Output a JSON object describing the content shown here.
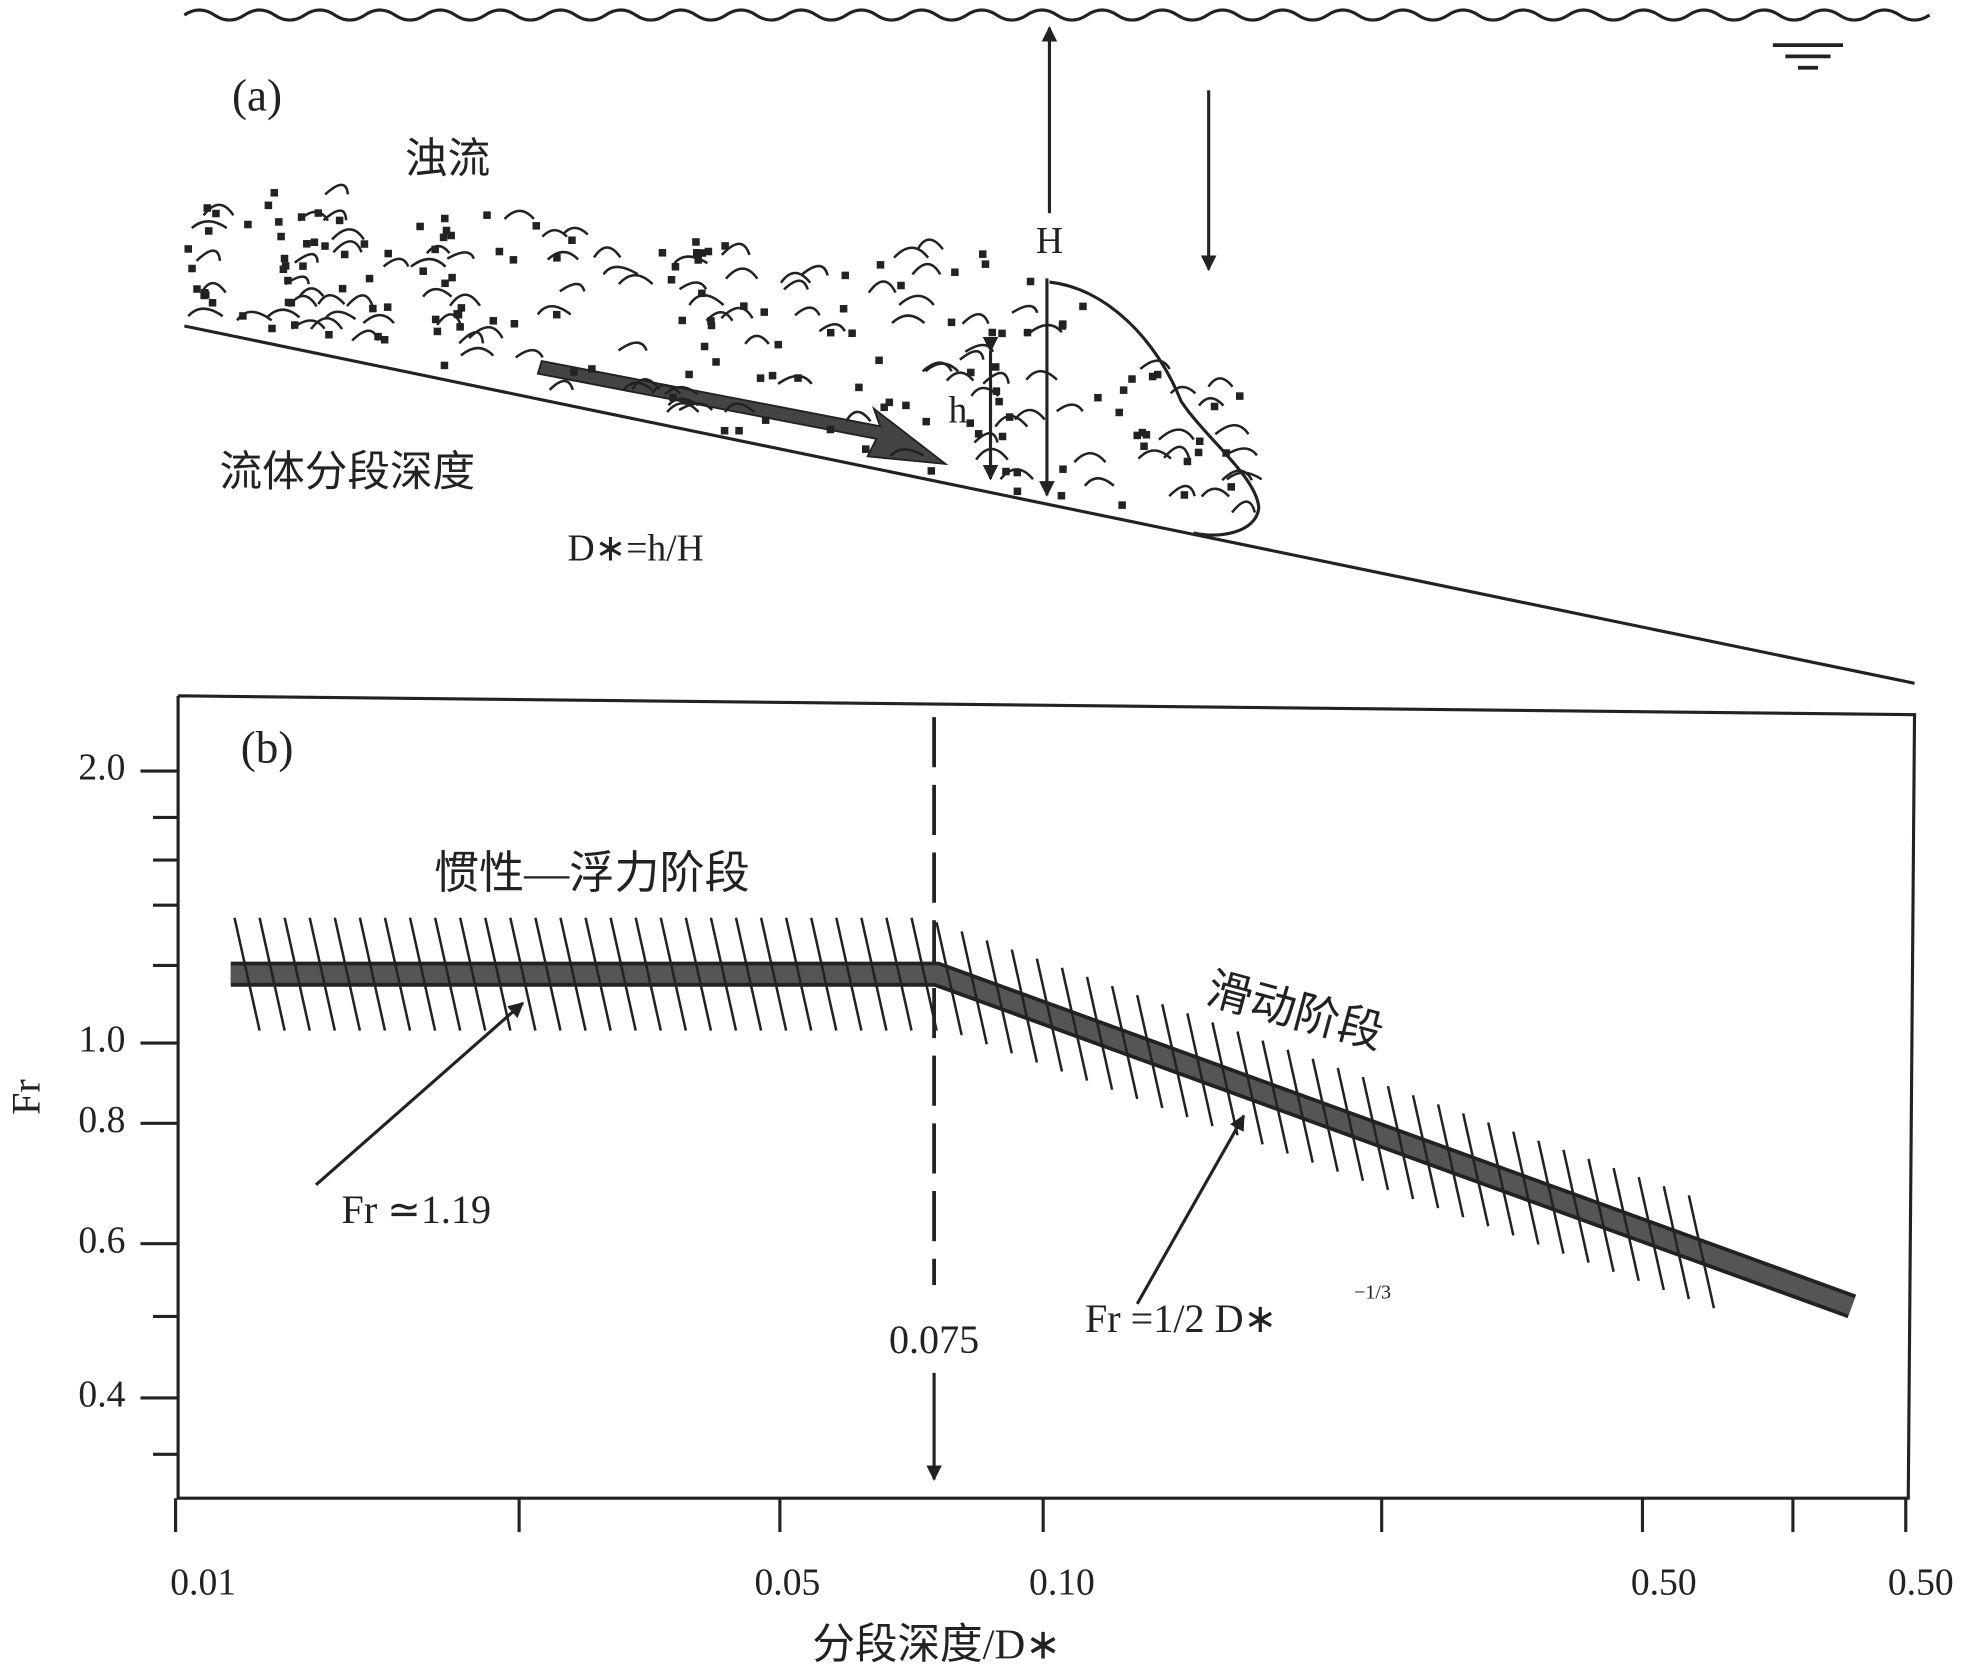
{
  "panel_a": {
    "label": "(a)",
    "current": "浊流",
    "big_h": "H",
    "small_h": "h",
    "depth_label": "流体分段深度",
    "formula": "D∗=h/H"
  },
  "panel_b": {
    "label": "(b)",
    "y_axis_label": "Fr",
    "yticks": [
      "2.0",
      "1.0",
      "0.8",
      "0.6",
      "0.4"
    ],
    "xticks": [
      "0.01",
      "0.05",
      "0.10",
      "0.50",
      "0.50"
    ],
    "x_axis_label": "分段深度/D∗",
    "stage_1": "惯性—浮力阶段",
    "stage_2": "滑动阶段",
    "threshold": "0.075",
    "annotation_1": "Fr ≃1.19",
    "annotation_2": "Fr =1/2  D∗",
    "annotation_2_exponent": "−1/3"
  }
}
